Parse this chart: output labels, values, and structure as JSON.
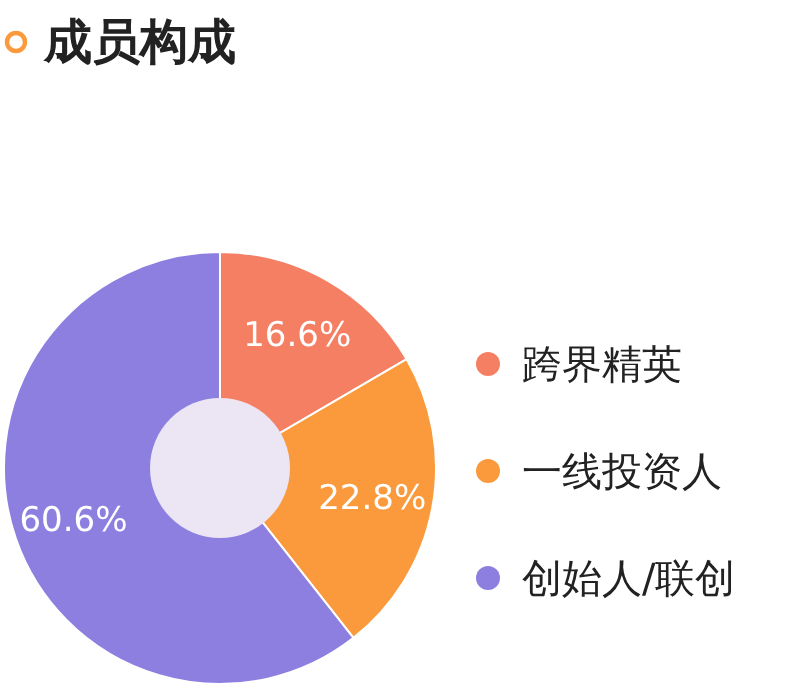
{
  "chart_data": {
    "type": "donut",
    "title": "成员构成",
    "categories": [
      "跨界精英",
      "一线投资人",
      "创始人/联创"
    ],
    "values": [
      16.6,
      22.8,
      60.6
    ],
    "colors": [
      "#f57f63",
      "#fa9a3c",
      "#8c7fe0"
    ],
    "value_labels": [
      "16.6%",
      "22.8%",
      "60.6%"
    ],
    "legend": "right"
  }
}
